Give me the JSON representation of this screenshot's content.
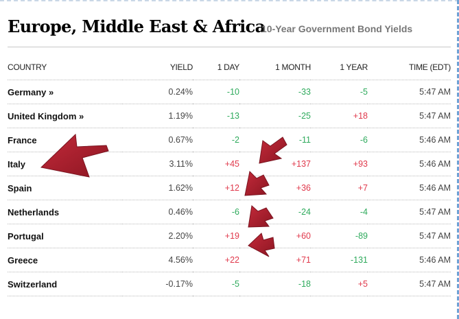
{
  "header": {
    "title": "Europe, Middle East & Africa",
    "subtitle": "10-Year Government Bond Yields"
  },
  "table": {
    "columns": [
      "COUNTRY",
      "YIELD",
      "1 DAY",
      "1 MONTH",
      "1 YEAR",
      "TIME (EDT)"
    ],
    "rows": [
      {
        "country": "Germany »",
        "yield": "0.24%",
        "day": "-10",
        "month": "-33",
        "year": "-5",
        "time": "5:47 AM"
      },
      {
        "country": "United Kingdom »",
        "yield": "1.19%",
        "day": "-13",
        "month": "-25",
        "year": "+18",
        "time": "5:47 AM"
      },
      {
        "country": "France",
        "yield": "0.67%",
        "day": "-2",
        "month": "-11",
        "year": "-6",
        "time": "5:46 AM"
      },
      {
        "country": "Italy",
        "yield": "3.11%",
        "day": "+45",
        "month": "+137",
        "year": "+93",
        "time": "5:46 AM"
      },
      {
        "country": "Spain",
        "yield": "1.62%",
        "day": "+12",
        "month": "+36",
        "year": "+7",
        "time": "5:46 AM"
      },
      {
        "country": "Netherlands",
        "yield": "0.46%",
        "day": "-6",
        "month": "-24",
        "year": "-4",
        "time": "5:47 AM"
      },
      {
        "country": "Portugal",
        "yield": "2.20%",
        "day": "+19",
        "month": "+60",
        "year": "-89",
        "time": "5:47 AM"
      },
      {
        "country": "Greece",
        "yield": "4.56%",
        "day": "+22",
        "month": "+71",
        "year": "-131",
        "time": "5:46 AM"
      },
      {
        "country": "Switzerland",
        "yield": "-0.17%",
        "day": "-5",
        "month": "-18",
        "year": "+5",
        "time": "5:47 AM"
      }
    ]
  },
  "colors": {
    "positive": "#e0384b",
    "negative": "#2eaa5c",
    "annotation_arrow": "#a51c2b"
  },
  "annotations": {
    "icon": "arrow-icon",
    "highlighted_rows": [
      "Italy",
      "Spain",
      "Portugal",
      "Greece"
    ]
  }
}
